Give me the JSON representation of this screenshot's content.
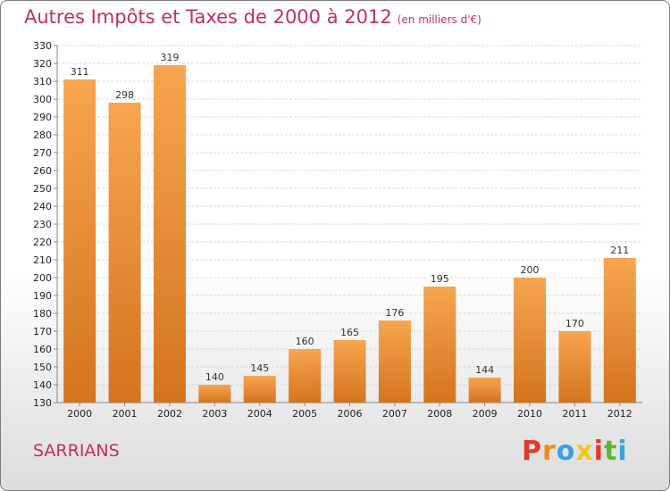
{
  "chart_data": {
    "type": "bar",
    "title": "Autres Impôts et Taxes de 2000 à 2012",
    "subtitle": "(en milliers d'€)",
    "categories": [
      "2000",
      "2001",
      "2002",
      "2003",
      "2004",
      "2005",
      "2006",
      "2007",
      "2008",
      "2009",
      "2010",
      "2011",
      "2012"
    ],
    "values": [
      311,
      298,
      319,
      140,
      145,
      160,
      165,
      176,
      195,
      144,
      200,
      170,
      211
    ],
    "ylim": [
      130,
      330
    ],
    "ytick_step": 10,
    "grid": true,
    "bar_color_top": "#f7a54f",
    "bar_color_bottom": "#d4741f"
  },
  "location": "SARRIANS",
  "logo": {
    "letters": [
      "P",
      "r",
      "o",
      "x",
      "i",
      "t",
      "i"
    ],
    "colors": [
      "#e03a2f",
      "#f08c1a",
      "#3aa0e0",
      "#f0c81a",
      "#e03a2f",
      "#5cb832",
      "#3aa0e0"
    ]
  }
}
